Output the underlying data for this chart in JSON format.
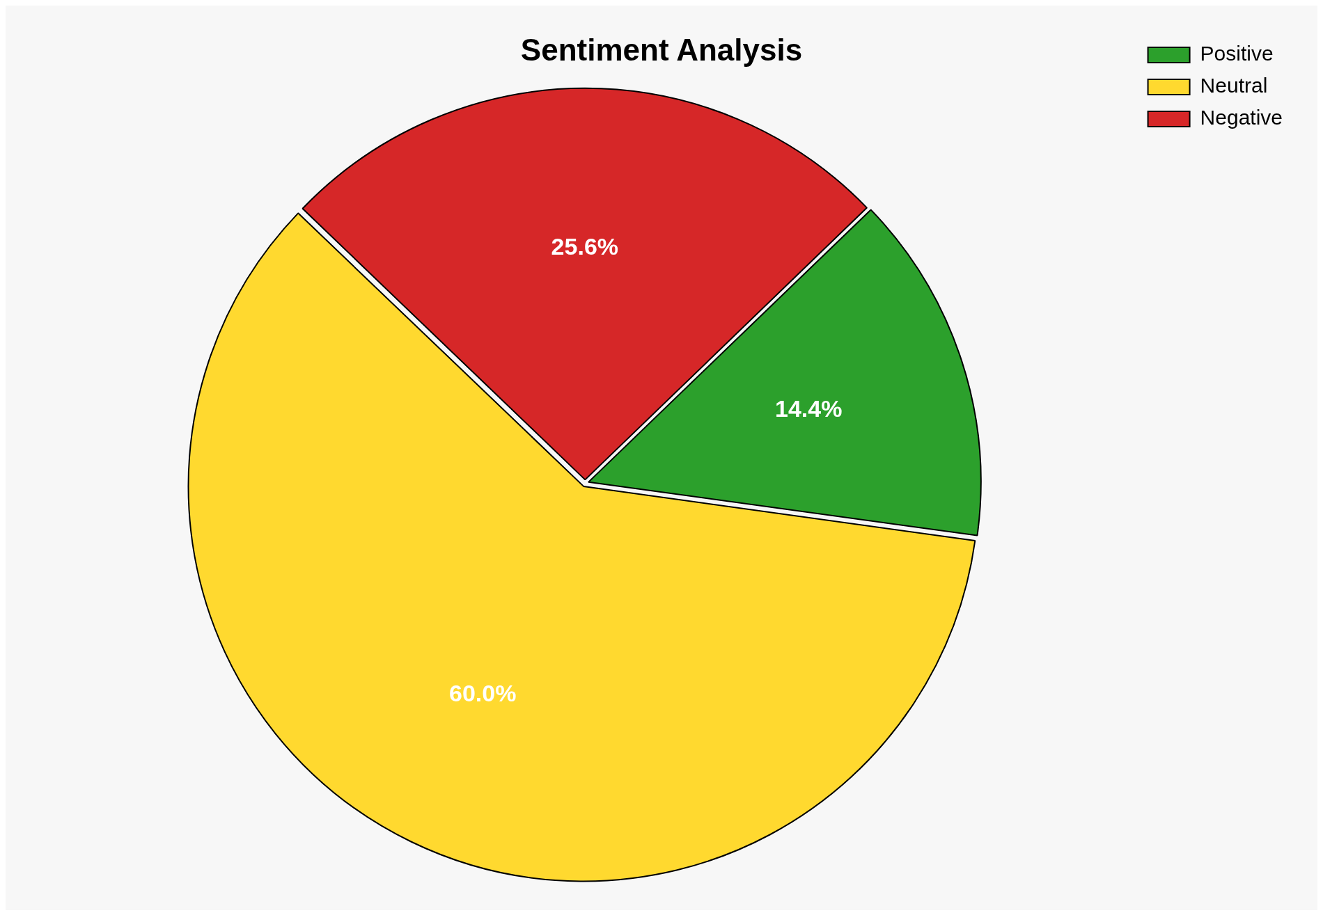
{
  "chart_data": {
    "type": "pie",
    "title": "Sentiment Analysis",
    "categories": [
      "Positive",
      "Neutral",
      "Negative"
    ],
    "values": [
      14.4,
      60.0,
      25.6
    ],
    "colors": [
      "#2ca02c",
      "#ffd92f",
      "#d62728"
    ],
    "legend": "top right",
    "value_labels": [
      "14.4%",
      "60.0%",
      "25.6%"
    ]
  }
}
